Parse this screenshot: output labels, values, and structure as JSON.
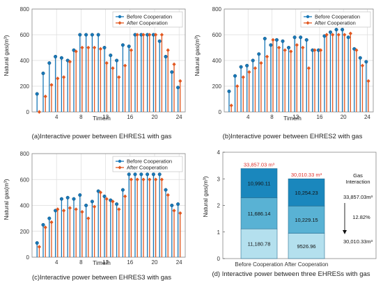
{
  "colors": {
    "before": "#1878b8",
    "after": "#e2571f",
    "seg_dark": "#1a87bd",
    "seg_mid": "#59b2d4",
    "seg_light": "#b4e0ee",
    "red": "#e0302b"
  },
  "legend": {
    "before": "Before Cooperation",
    "after": "After Cooperation"
  },
  "chart_data": [
    {
      "id": "a",
      "type": "stem",
      "caption": "(a)Interactive power between EHRES1 with gas",
      "xlabel": "Time/h",
      "ylabel": "Natural gas(m³)",
      "xlim": [
        0,
        25
      ],
      "ylim": [
        0,
        800
      ],
      "xticks": [
        4,
        8,
        12,
        16,
        20,
        24
      ],
      "yticks": [
        0,
        200,
        400,
        600,
        800
      ],
      "legend_position": "top-right",
      "x": [
        1,
        2,
        3,
        4,
        5,
        6,
        7,
        8,
        9,
        10,
        11,
        12,
        13,
        14,
        15,
        16,
        17,
        18,
        19,
        20,
        21,
        22,
        23,
        24
      ],
      "series": [
        {
          "name": "Before Cooperation",
          "values": [
            140,
            300,
            380,
            430,
            420,
            400,
            480,
            600,
            600,
            600,
            600,
            500,
            440,
            400,
            520,
            510,
            600,
            600,
            600,
            600,
            550,
            430,
            310,
            190
          ]
        },
        {
          "name": "After Cooperation",
          "values": [
            0,
            120,
            210,
            260,
            270,
            390,
            470,
            500,
            500,
            500,
            490,
            380,
            340,
            270,
            360,
            480,
            600,
            600,
            600,
            600,
            600,
            480,
            370,
            240
          ]
        }
      ]
    },
    {
      "id": "b",
      "type": "stem",
      "caption": "(b)Interactive power between EHRES2 with gas",
      "xlabel": "Time/h",
      "ylabel": "Natural gas(m³)",
      "xlim": [
        0,
        25
      ],
      "ylim": [
        0,
        800
      ],
      "xticks": [
        4,
        8,
        12,
        16,
        20,
        24
      ],
      "yticks": [
        0,
        200,
        400,
        600,
        800
      ],
      "legend_position": "top-right",
      "x": [
        1,
        2,
        3,
        4,
        5,
        6,
        7,
        8,
        9,
        10,
        11,
        12,
        13,
        14,
        15,
        16,
        17,
        18,
        19,
        20,
        21,
        22,
        23,
        24
      ],
      "series": [
        {
          "name": "Before Cooperation",
          "values": [
            160,
            280,
            350,
            360,
            400,
            450,
            570,
            520,
            560,
            550,
            500,
            580,
            580,
            560,
            480,
            480,
            590,
            620,
            640,
            640,
            580,
            490,
            420,
            390
          ]
        },
        {
          "name": "After Cooperation",
          "values": [
            50,
            200,
            270,
            310,
            340,
            380,
            430,
            560,
            500,
            480,
            470,
            520,
            500,
            340,
            480,
            480,
            600,
            600,
            600,
            600,
            610,
            480,
            360,
            240
          ]
        }
      ]
    },
    {
      "id": "c",
      "type": "stem",
      "caption": "(c)Interactive power between EHRES3 with gas",
      "xlabel": "Time/h",
      "ylabel": "Natural gas(m³)",
      "xlim": [
        0,
        25
      ],
      "ylim": [
        0,
        800
      ],
      "xticks": [
        4,
        8,
        12,
        16,
        20,
        24
      ],
      "yticks": [
        0,
        200,
        400,
        600,
        800
      ],
      "legend_position": "top-right",
      "x": [
        1,
        2,
        3,
        4,
        5,
        6,
        7,
        8,
        9,
        10,
        11,
        12,
        13,
        14,
        15,
        16,
        17,
        18,
        19,
        20,
        21,
        22,
        23,
        24
      ],
      "series": [
        {
          "name": "Before Cooperation",
          "values": [
            110,
            250,
            300,
            360,
            450,
            460,
            450,
            480,
            400,
            430,
            510,
            470,
            440,
            410,
            520,
            640,
            640,
            640,
            640,
            640,
            640,
            520,
            400,
            410
          ]
        },
        {
          "name": "After Cooperation",
          "values": [
            80,
            230,
            270,
            370,
            360,
            380,
            370,
            350,
            300,
            390,
            500,
            450,
            430,
            370,
            470,
            600,
            600,
            600,
            600,
            600,
            600,
            480,
            360,
            340
          ]
        }
      ]
    },
    {
      "id": "d",
      "type": "stacked_bar",
      "caption": "(d) Interactive power between three EHRESs with gas",
      "ylabel": "Natural gas(m³)",
      "ylim": [
        0,
        4
      ],
      "yticks": [
        0,
        1,
        2,
        3,
        4
      ],
      "categories": [
        "Before Cooperation",
        "After Cooperation"
      ],
      "totals": [
        "33,857.03 m³",
        "30,010.33 m³"
      ],
      "stacks": [
        [
          {
            "label": "11,180.78",
            "value": 1.118078
          },
          {
            "label": "11,686.14",
            "value": 1.168614
          },
          {
            "label": "10,990.11",
            "value": 1.099011
          }
        ],
        [
          {
            "label": "9526.96",
            "value": 0.952696
          },
          {
            "label": "10,229.15",
            "value": 1.022915
          },
          {
            "label": "10,254.23",
            "value": 1.025423
          }
        ]
      ],
      "annotation": {
        "title_line1": "Gas",
        "title_line2": "Interaction",
        "from": "33,857.03m³",
        "percent": "12.82%",
        "to": "30,010.33m³"
      }
    }
  ]
}
